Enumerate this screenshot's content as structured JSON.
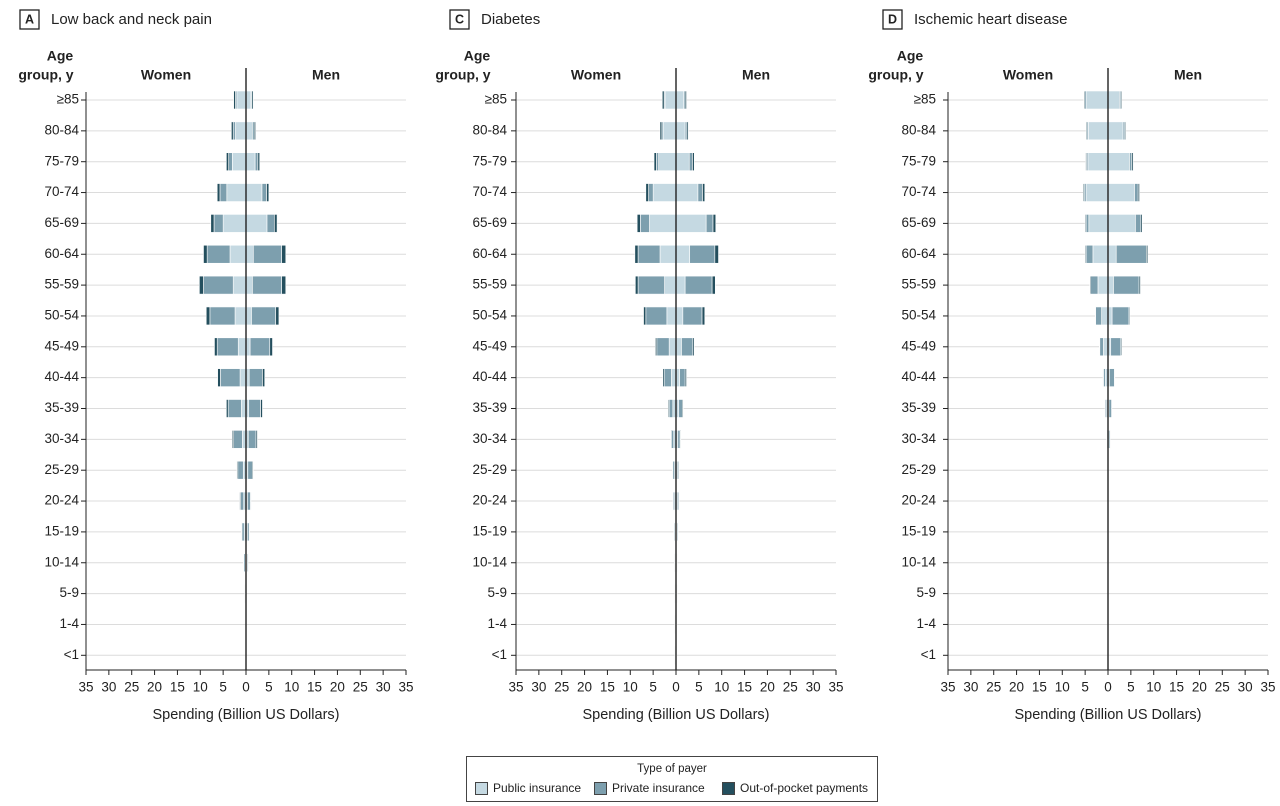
{
  "colors": {
    "public": "#c5d9e2",
    "private": "#7d9fae",
    "oop": "#244f5e",
    "grid": "#dcdcdc",
    "axis": "#222222",
    "text": "#222222"
  },
  "legend": {
    "title": "Type of payer",
    "items": [
      {
        "key": "public",
        "label": "Public insurance"
      },
      {
        "key": "private",
        "label": "Private insurance"
      },
      {
        "key": "oop",
        "label": "Out-of-pocket payments"
      }
    ]
  },
  "chart_data": [
    {
      "type": "bar",
      "orientation": "horizontal-population-pyramid",
      "panel_letter": "A",
      "title": "Low back and neck pain",
      "left_label": "Women",
      "right_label": "Men",
      "y_label_line1": "Age",
      "y_label_line2": "group, y",
      "xlabel": "Spending (Billion US Dollars)",
      "xlim": [
        -35,
        35
      ],
      "x_ticks": [
        "35",
        "30",
        "25",
        "20",
        "15",
        "10",
        "5",
        "0",
        "5",
        "10",
        "15",
        "20",
        "25",
        "30",
        "35"
      ],
      "categories": [
        "≥85",
        "80-84",
        "75-79",
        "70-74",
        "65-69",
        "60-64",
        "55-59",
        "50-54",
        "45-49",
        "40-44",
        "35-39",
        "30-34",
        "25-29",
        "20-24",
        "15-19",
        "10-14",
        "5-9",
        "1-4",
        "<1"
      ],
      "women": {
        "public": [
          2.0,
          2.3,
          3.0,
          4.2,
          5.0,
          3.5,
          2.8,
          2.4,
          1.7,
          1.3,
          1.0,
          0.8,
          0.6,
          0.5,
          0.4,
          0.2,
          0.1,
          0.0,
          0.0
        ],
        "private": [
          0.3,
          0.5,
          0.8,
          1.5,
          2.0,
          5.0,
          6.5,
          5.5,
          4.6,
          4.3,
          2.9,
          1.9,
          1.2,
          0.7,
          0.5,
          0.3,
          0.1,
          0.0,
          0.0
        ],
        "oop": [
          0.4,
          0.4,
          0.5,
          0.6,
          0.7,
          0.8,
          0.9,
          0.8,
          0.6,
          0.6,
          0.4,
          0.3,
          0.2,
          0.2,
          0.1,
          0.1,
          0.05,
          0.0,
          0.0
        ]
      },
      "men": {
        "public": [
          1.1,
          1.4,
          2.0,
          3.5,
          4.6,
          1.6,
          1.4,
          1.2,
          0.9,
          0.7,
          0.6,
          0.5,
          0.4,
          0.3,
          0.3,
          0.2,
          0.0,
          0.0,
          0.0
        ],
        "private": [
          0.2,
          0.4,
          0.6,
          1.0,
          1.6,
          6.2,
          6.4,
          5.3,
          4.3,
          2.9,
          2.6,
          1.7,
          1.0,
          0.7,
          0.4,
          0.2,
          0.0,
          0.0,
          0.0
        ],
        "oop": [
          0.3,
          0.3,
          0.4,
          0.5,
          0.6,
          0.9,
          0.9,
          0.7,
          0.6,
          0.5,
          0.4,
          0.3,
          0.2,
          0.1,
          0.1,
          0.05,
          0.0,
          0.0,
          0.0
        ]
      }
    },
    {
      "type": "bar",
      "orientation": "horizontal-population-pyramid",
      "panel_letter": "C",
      "title": "Diabetes",
      "left_label": "Women",
      "right_label": "Men",
      "y_label_line1": "Age",
      "y_label_line2": "group, y",
      "xlabel": "Spending (Billion US Dollars)",
      "xlim": [
        -35,
        35
      ],
      "x_ticks": [
        "35",
        "30",
        "25",
        "20",
        "15",
        "10",
        "5",
        "0",
        "5",
        "10",
        "15",
        "20",
        "25",
        "30",
        "35"
      ],
      "categories": [
        "≥85",
        "80-84",
        "75-79",
        "70-74",
        "65-69",
        "60-64",
        "55-59",
        "50-54",
        "45-49",
        "40-44",
        "35-39",
        "30-34",
        "25-29",
        "20-24",
        "15-19",
        "10-14",
        "5-9",
        "1-4",
        "<1"
      ],
      "women": {
        "public": [
          2.4,
          2.8,
          3.8,
          5.0,
          5.8,
          3.5,
          2.5,
          2.0,
          1.5,
          1.0,
          0.7,
          0.5,
          0.3,
          0.3,
          0.2,
          0.2,
          0.1,
          0.1,
          0.1
        ],
        "private": [
          0.2,
          0.3,
          0.5,
          1.0,
          2.0,
          4.8,
          5.8,
          4.6,
          2.7,
          1.6,
          0.8,
          0.5,
          0.4,
          0.3,
          0.2,
          0.1,
          0.1,
          0.1,
          0.1
        ],
        "oop": [
          0.4,
          0.4,
          0.5,
          0.6,
          0.7,
          0.7,
          0.6,
          0.5,
          0.3,
          0.3,
          0.2,
          0.15,
          0.1,
          0.1,
          0.1,
          0.05,
          0.05,
          0.05,
          0.05
        ]
      },
      "men": {
        "public": [
          1.7,
          2.0,
          2.9,
          4.8,
          6.6,
          3.0,
          2.0,
          1.5,
          1.2,
          0.8,
          0.6,
          0.4,
          0.3,
          0.3,
          0.2,
          0.1,
          0.1,
          0.05,
          0.05
        ],
        "private": [
          0.3,
          0.4,
          0.7,
          1.0,
          1.5,
          5.5,
          5.9,
          4.2,
          2.5,
          1.2,
          0.8,
          0.5,
          0.3,
          0.3,
          0.2,
          0.1,
          0.1,
          0.1,
          0.05
        ],
        "oop": [
          0.3,
          0.3,
          0.4,
          0.5,
          0.6,
          0.8,
          0.7,
          0.6,
          0.3,
          0.3,
          0.2,
          0.15,
          0.1,
          0.1,
          0.1,
          0.05,
          0.05,
          0.05,
          0.05
        ]
      }
    },
    {
      "type": "bar",
      "orientation": "horizontal-population-pyramid",
      "panel_letter": "D",
      "title": "Ischemic heart disease",
      "left_label": "Women",
      "right_label": "Men",
      "y_label_line1": "Age",
      "y_label_line2": "group, y",
      "xlabel": "Spending (Billion US Dollars)",
      "xlim": [
        -35,
        35
      ],
      "x_ticks": [
        "35",
        "30",
        "25",
        "20",
        "15",
        "10",
        "5",
        "0",
        "5",
        "10",
        "15",
        "20",
        "25",
        "30",
        "35"
      ],
      "categories": [
        "≥85",
        "80-84",
        "75-79",
        "70-74",
        "65-69",
        "60-64",
        "55-59",
        "50-54",
        "45-49",
        "40-44",
        "35-39",
        "30-34",
        "25-29",
        "20-24",
        "15-19",
        "10-14",
        "5-9",
        "1-4",
        "<1"
      ],
      "women": {
        "public": [
          4.8,
          4.3,
          4.4,
          4.8,
          4.2,
          3.3,
          2.2,
          1.4,
          1.0,
          0.6,
          0.3,
          0.1,
          0.0,
          0.0,
          0.0,
          0.0,
          0.0,
          0.0,
          0.0
        ],
        "private": [
          0.3,
          0.3,
          0.3,
          0.4,
          0.6,
          1.5,
          1.6,
          1.3,
          0.8,
          0.4,
          0.3,
          0.15,
          0.0,
          0.0,
          0.0,
          0.0,
          0.0,
          0.0,
          0.0
        ],
        "oop": [
          0.2,
          0.2,
          0.2,
          0.2,
          0.2,
          0.2,
          0.2,
          0.1,
          0.1,
          0.1,
          0.05,
          0.05,
          0.0,
          0.0,
          0.0,
          0.0,
          0.0,
          0.0,
          0.0
        ]
      },
      "men": {
        "public": [
          2.5,
          3.3,
          4.7,
          5.8,
          6.0,
          1.8,
          1.2,
          0.9,
          0.6,
          0.3,
          0.2,
          0.1,
          0.0,
          0.0,
          0.0,
          0.0,
          0.0,
          0.0,
          0.0
        ],
        "private": [
          0.3,
          0.4,
          0.5,
          0.8,
          1.2,
          6.6,
          5.6,
          3.7,
          2.2,
          1.1,
          0.6,
          0.3,
          0.0,
          0.0,
          0.0,
          0.0,
          0.0,
          0.0,
          0.0
        ],
        "oop": [
          0.2,
          0.2,
          0.3,
          0.3,
          0.3,
          0.3,
          0.3,
          0.2,
          0.2,
          0.1,
          0.05,
          0.05,
          0.0,
          0.0,
          0.0,
          0.0,
          0.0,
          0.0,
          0.0
        ]
      }
    }
  ]
}
